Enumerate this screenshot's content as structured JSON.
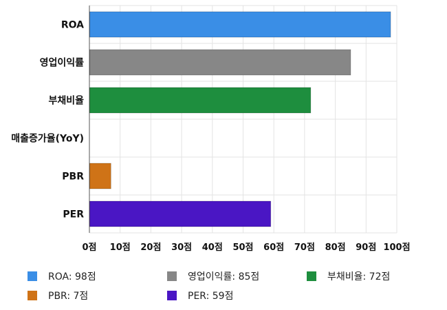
{
  "chart_data": {
    "type": "bar",
    "orientation": "horizontal",
    "categories": [
      "ROA",
      "영업이익률",
      "부채비율",
      "매출증가율(YoY)",
      "PBR",
      "PER"
    ],
    "values": [
      98,
      85,
      72,
      0,
      7,
      59
    ],
    "colors": [
      "#3a8ee6",
      "#878787",
      "#1e8e3e",
      "#d8e6f5",
      "#cf7317",
      "#4a16c4"
    ],
    "xlim": [
      0,
      100
    ],
    "xticks": [
      0,
      10,
      20,
      30,
      40,
      50,
      60,
      70,
      80,
      90,
      100
    ],
    "tick_labels": [
      "0점",
      "10점",
      "20점",
      "30점",
      "40점",
      "50점",
      "60점",
      "70점",
      "80점",
      "90점",
      "100점"
    ],
    "grid": true,
    "legend_position": "bottom",
    "legend": [
      {
        "label": "ROA: 98점",
        "color": "#3a8ee6"
      },
      {
        "label": "영업이익률: 85점",
        "color": "#878787"
      },
      {
        "label": "부채비율: 72점",
        "color": "#1e8e3e"
      },
      {
        "label": "PBR: 7점",
        "color": "#cf7317"
      },
      {
        "label": "PER: 59점",
        "color": "#4a16c4"
      }
    ]
  }
}
